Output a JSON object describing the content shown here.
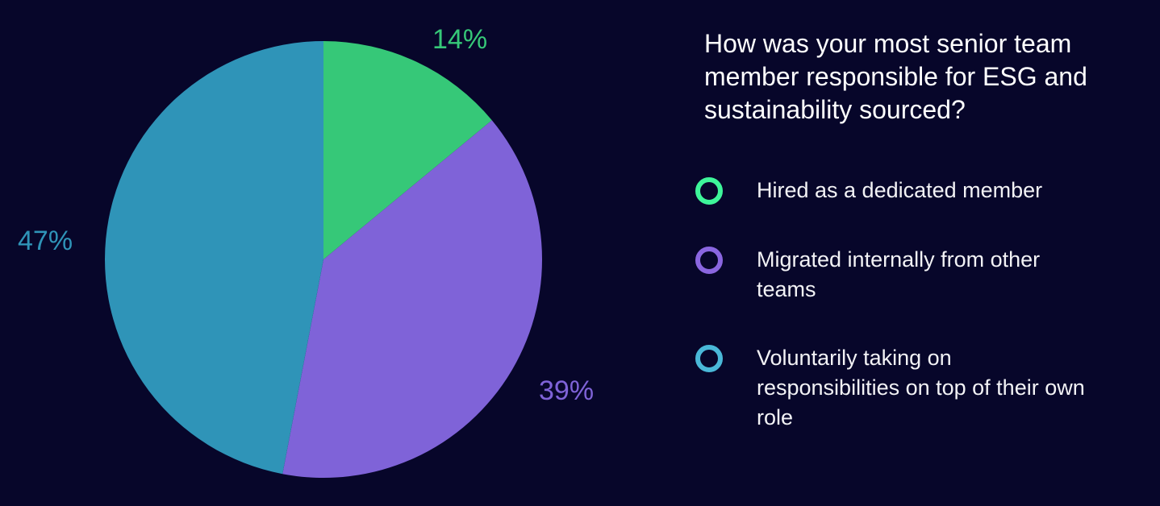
{
  "chart_data": {
    "type": "pie",
    "title": "How was your most senior team member responsible for ESG and sustainability sourced?",
    "legend_position": "right",
    "slices": [
      {
        "label": "Hired as a dedicated member",
        "value": 14,
        "value_label": "14%",
        "color": "#36c878",
        "legend_color": "#3ef59a"
      },
      {
        "label": "Migrated internally from other teams",
        "value": 39,
        "value_label": "39%",
        "color": "#7f63d8",
        "legend_color": "#8a66e0"
      },
      {
        "label": "Voluntarily taking on responsibilities on top of their own role",
        "value": 47,
        "value_label": "47%",
        "color": "#2f94b8",
        "legend_color": "#4ab8d8"
      }
    ]
  },
  "background": "#07062a"
}
